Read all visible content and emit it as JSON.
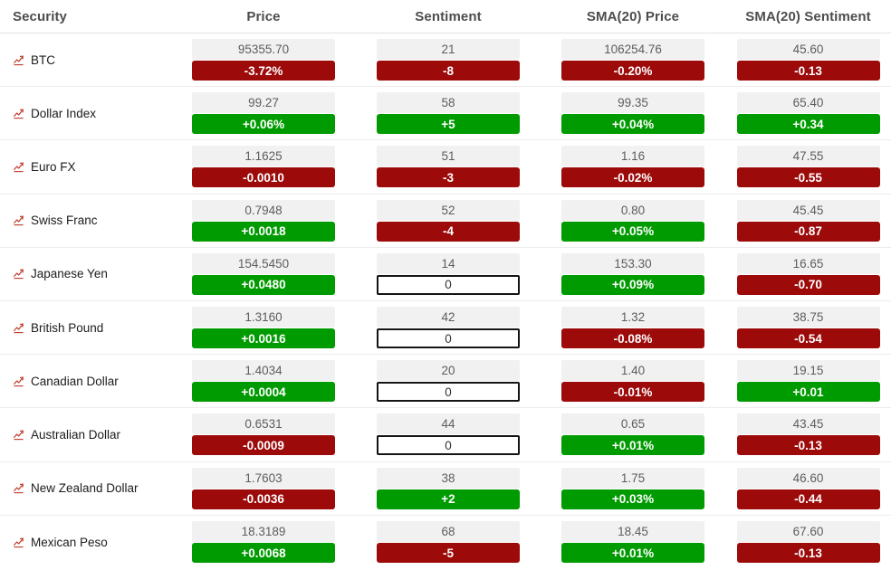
{
  "table": {
    "columns": [
      {
        "label": "Security"
      },
      {
        "label": "Price"
      },
      {
        "label": "Sentiment"
      },
      {
        "label": "SMA(20) Price"
      },
      {
        "label": "SMA(20) Sentiment"
      }
    ],
    "colors": {
      "positive": "#009b00",
      "negative": "#9d0a0a",
      "neutral_border": "#141414",
      "value_bg": "#f1f1f1",
      "icon_red": "#c0392b"
    },
    "row_icon": "trend-chart-icon",
    "rows": [
      {
        "security": "BTC",
        "price": {
          "value": "95355.70",
          "change": "-3.72%",
          "trend": "negative"
        },
        "sentiment": {
          "value": "21",
          "change": "-8",
          "trend": "negative"
        },
        "sma_price": {
          "value": "106254.76",
          "change": "-0.20%",
          "trend": "negative"
        },
        "sma_sentiment": {
          "value": "45.60",
          "change": "-0.13",
          "trend": "negative"
        }
      },
      {
        "security": "Dollar Index",
        "price": {
          "value": "99.27",
          "change": "+0.06%",
          "trend": "positive"
        },
        "sentiment": {
          "value": "58",
          "change": "+5",
          "trend": "positive"
        },
        "sma_price": {
          "value": "99.35",
          "change": "+0.04%",
          "trend": "positive"
        },
        "sma_sentiment": {
          "value": "65.40",
          "change": "+0.34",
          "trend": "positive"
        }
      },
      {
        "security": "Euro FX",
        "price": {
          "value": "1.1625",
          "change": "-0.0010",
          "trend": "negative"
        },
        "sentiment": {
          "value": "51",
          "change": "-3",
          "trend": "negative"
        },
        "sma_price": {
          "value": "1.16",
          "change": "-0.02%",
          "trend": "negative"
        },
        "sma_sentiment": {
          "value": "47.55",
          "change": "-0.55",
          "trend": "negative"
        }
      },
      {
        "security": "Swiss Franc",
        "price": {
          "value": "0.7948",
          "change": "+0.0018",
          "trend": "positive"
        },
        "sentiment": {
          "value": "52",
          "change": "-4",
          "trend": "negative"
        },
        "sma_price": {
          "value": "0.80",
          "change": "+0.05%",
          "trend": "positive"
        },
        "sma_sentiment": {
          "value": "45.45",
          "change": "-0.87",
          "trend": "negative"
        }
      },
      {
        "security": "Japanese Yen",
        "price": {
          "value": "154.5450",
          "change": "+0.0480",
          "trend": "positive"
        },
        "sentiment": {
          "value": "14",
          "change": "0",
          "trend": "neutral"
        },
        "sma_price": {
          "value": "153.30",
          "change": "+0.09%",
          "trend": "positive"
        },
        "sma_sentiment": {
          "value": "16.65",
          "change": "-0.70",
          "trend": "negative"
        }
      },
      {
        "security": "British Pound",
        "price": {
          "value": "1.3160",
          "change": "+0.0016",
          "trend": "positive"
        },
        "sentiment": {
          "value": "42",
          "change": "0",
          "trend": "neutral"
        },
        "sma_price": {
          "value": "1.32",
          "change": "-0.08%",
          "trend": "negative"
        },
        "sma_sentiment": {
          "value": "38.75",
          "change": "-0.54",
          "trend": "negative"
        }
      },
      {
        "security": "Canadian Dollar",
        "price": {
          "value": "1.4034",
          "change": "+0.0004",
          "trend": "positive"
        },
        "sentiment": {
          "value": "20",
          "change": "0",
          "trend": "neutral"
        },
        "sma_price": {
          "value": "1.40",
          "change": "-0.01%",
          "trend": "negative"
        },
        "sma_sentiment": {
          "value": "19.15",
          "change": "+0.01",
          "trend": "positive"
        }
      },
      {
        "security": "Australian Dollar",
        "price": {
          "value": "0.6531",
          "change": "-0.0009",
          "trend": "negative"
        },
        "sentiment": {
          "value": "44",
          "change": "0",
          "trend": "neutral"
        },
        "sma_price": {
          "value": "0.65",
          "change": "+0.01%",
          "trend": "positive"
        },
        "sma_sentiment": {
          "value": "43.45",
          "change": "-0.13",
          "trend": "negative"
        }
      },
      {
        "security": "New Zealand Dollar",
        "price": {
          "value": "1.7603",
          "change": "-0.0036",
          "trend": "negative"
        },
        "sentiment": {
          "value": "38",
          "change": "+2",
          "trend": "positive"
        },
        "sma_price": {
          "value": "1.75",
          "change": "+0.03%",
          "trend": "positive"
        },
        "sma_sentiment": {
          "value": "46.60",
          "change": "-0.44",
          "trend": "negative"
        }
      },
      {
        "security": "Mexican Peso",
        "price": {
          "value": "18.3189",
          "change": "+0.0068",
          "trend": "positive"
        },
        "sentiment": {
          "value": "68",
          "change": "-5",
          "trend": "negative"
        },
        "sma_price": {
          "value": "18.45",
          "change": "+0.01%",
          "trend": "positive"
        },
        "sma_sentiment": {
          "value": "67.60",
          "change": "-0.13",
          "trend": "negative"
        }
      }
    ]
  }
}
